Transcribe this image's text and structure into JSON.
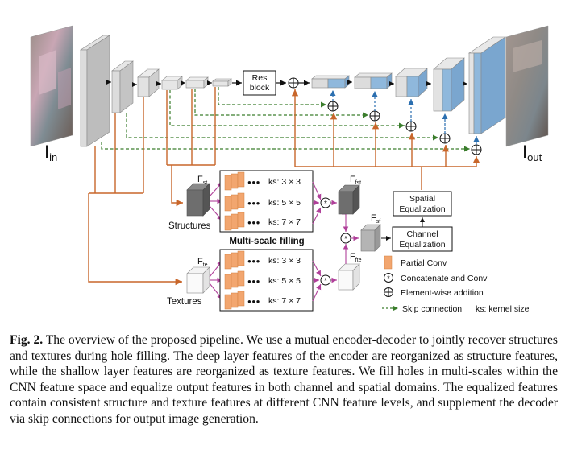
{
  "figure": {
    "input_label": {
      "main": "I",
      "sub": "in"
    },
    "output_label": {
      "main": "I",
      "sub": "out"
    },
    "res_block_lines": [
      "Res",
      "block"
    ],
    "structures_label": "Structures",
    "textures_label": "Textures",
    "multi_scale_title": "Multi-scale filling",
    "f_st": {
      "main": "F",
      "sub": "st"
    },
    "f_te": {
      "main": "F",
      "sub": "te"
    },
    "f_fst": {
      "main": "F",
      "sub": "fst"
    },
    "f_fte": {
      "main": "F",
      "sub": "fte"
    },
    "f_sf": {
      "main": "F",
      "sub": "sf"
    },
    "struct_kernels": [
      "ks: 3 × 3",
      "ks: 5 × 5",
      "ks: 7 × 7"
    ],
    "texture_kernels": [
      "ks: 3 × 3",
      "ks: 5 × 5",
      "ks: 7 × 7"
    ],
    "dots": "●●●",
    "spatial_eq_lines": [
      "Spatial",
      "Equalization"
    ],
    "channel_eq_lines": [
      "Channel",
      "Equalization"
    ],
    "legend": {
      "partial_conv": "Partial Conv",
      "concat_conv": "Concatenate and Conv",
      "elementwise_add": "Element-wise addition",
      "skip_connection": "Skip connection",
      "kernel_size": "ks: kernel size"
    },
    "colors": {
      "orange_line": "#c8662a",
      "green_dash": "#3a7d2c",
      "blue_dash": "#2b6fb0",
      "magenta": "#b0409a",
      "encoder_gray": "#c9c9c9",
      "decoder_blue": "#8fb8dc",
      "partial_conv_orange": "#f2a66f"
    }
  },
  "caption": {
    "label": "Fig. 2.",
    "text": "The overview of the proposed pipeline. We use a mutual encoder-decoder to jointly recover structures and textures during hole filling. The deep layer features of the encoder are reorganized as structure features, while the shallow layer features are reorganized as texture features. We fill holes in multi-scales within the CNN feature space and equalize output features in both channel and spatial domains. The equalized features contain consistent structure and texture features at different CNN feature levels, and supplement the decoder via skip connections for output image generation."
  }
}
